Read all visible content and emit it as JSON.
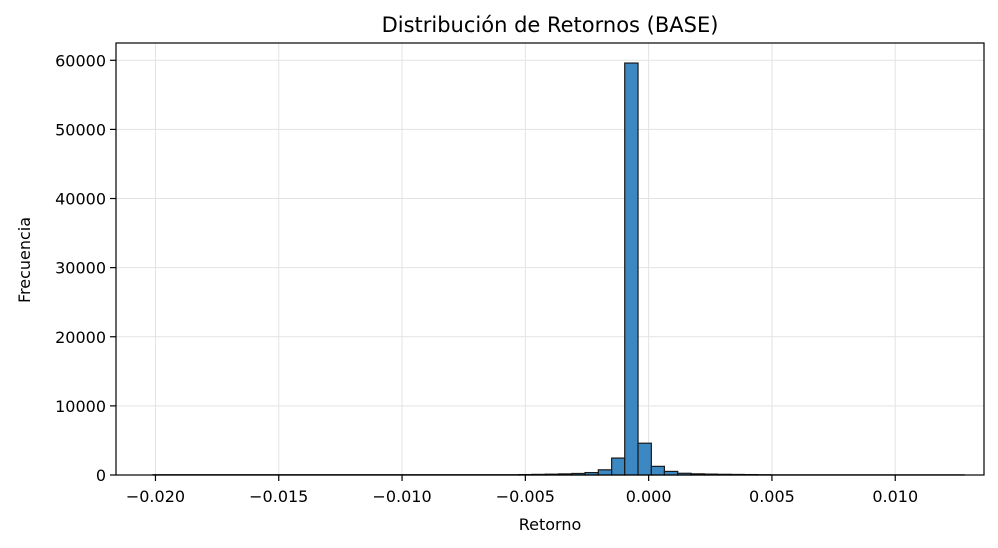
{
  "chart_data": {
    "type": "histogram",
    "title": "Distribución de Retornos (BASE)",
    "xlabel": "Retorno",
    "ylabel": "Frecuencia",
    "xlim": [
      -0.0216,
      0.0136
    ],
    "ylim": [
      0,
      62500
    ],
    "x_ticks": [
      -0.02,
      -0.015,
      -0.01,
      -0.005,
      0.0,
      0.005,
      0.01
    ],
    "x_tick_labels": [
      "−0.020",
      "−0.015",
      "−0.010",
      "−0.005",
      "0.000",
      "0.005",
      "0.010"
    ],
    "y_ticks": [
      0,
      10000,
      20000,
      30000,
      40000,
      50000,
      60000
    ],
    "y_tick_labels": [
      "0",
      "10000",
      "20000",
      "30000",
      "40000",
      "50000",
      "60000"
    ],
    "grid": true,
    "bin_edges": [
      -0.0201,
      -0.00526,
      -0.00473,
      -0.00419,
      -0.00365,
      -0.00312,
      -0.00258,
      -0.00204,
      -0.0015,
      -0.00097,
      -0.00043,
      0.00011,
      0.00064,
      0.00118,
      0.00172,
      0.00226,
      0.00279,
      0.00333,
      0.00387,
      0.00441,
      0.00494,
      0.0128
    ],
    "counts": [
      40,
      60,
      90,
      120,
      160,
      220,
      350,
      750,
      2450,
      59600,
      4600,
      1250,
      520,
      250,
      170,
      130,
      100,
      80,
      60,
      40,
      20
    ],
    "bar_color": "#3b88c3",
    "edge_color": "#1a1a1a"
  }
}
